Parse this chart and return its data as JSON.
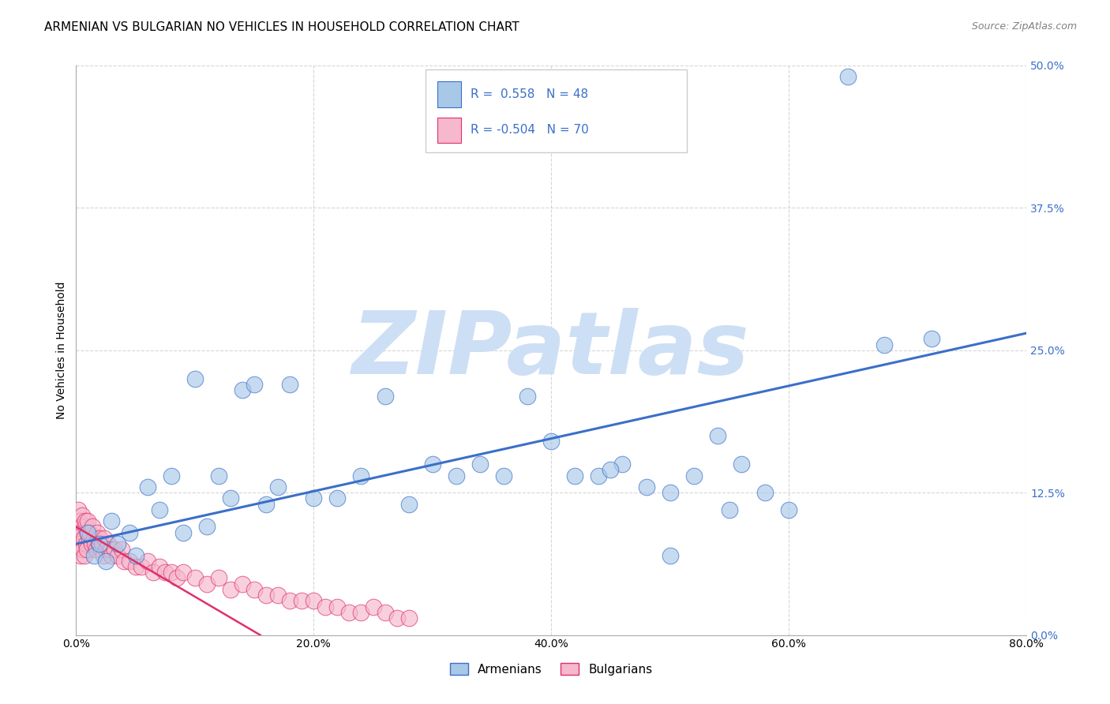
{
  "title": "ARMENIAN VS BULGARIAN NO VEHICLES IN HOUSEHOLD CORRELATION CHART",
  "source": "Source: ZipAtlas.com",
  "ylabel": "No Vehicles in Household",
  "x_tick_values": [
    0.0,
    20.0,
    40.0,
    60.0,
    80.0
  ],
  "y_tick_values": [
    0.0,
    12.5,
    25.0,
    37.5,
    50.0
  ],
  "xlim": [
    0.0,
    80.0
  ],
  "ylim": [
    0.0,
    50.0
  ],
  "legend_armenians_label": "Armenians",
  "legend_bulgarians_label": "Bulgarians",
  "armenian_R": 0.558,
  "armenian_N": 48,
  "bulgarian_R": -0.504,
  "bulgarian_N": 70,
  "armenian_color": "#a8c8e8",
  "bulgarian_color": "#f5b8cc",
  "armenian_line_color": "#3B6FC9",
  "bulgarian_line_color": "#E0306A",
  "background_color": "#ffffff",
  "watermark": "ZIPatlas",
  "watermark_color": "#cddff5",
  "grid_color": "#cccccc",
  "title_fontsize": 11,
  "axis_label_fontsize": 10,
  "tick_fontsize": 10,
  "arm_x": [
    1.0,
    1.5,
    2.0,
    2.5,
    3.0,
    3.5,
    4.5,
    5.0,
    6.0,
    7.0,
    8.0,
    9.0,
    10.0,
    11.0,
    12.0,
    13.0,
    14.0,
    15.0,
    16.0,
    17.0,
    18.0,
    20.0,
    22.0,
    24.0,
    26.0,
    28.0,
    30.0,
    32.0,
    34.0,
    36.0,
    38.0,
    40.0,
    42.0,
    44.0,
    46.0,
    48.0,
    50.0,
    52.0,
    54.0,
    56.0,
    58.0,
    60.0,
    45.0,
    50.0,
    55.0,
    65.0,
    68.0,
    72.0
  ],
  "arm_y": [
    9.0,
    7.0,
    8.0,
    6.5,
    10.0,
    8.0,
    9.0,
    7.0,
    13.0,
    11.0,
    14.0,
    9.0,
    22.5,
    9.5,
    14.0,
    12.0,
    21.5,
    22.0,
    11.5,
    13.0,
    22.0,
    12.0,
    12.0,
    14.0,
    21.0,
    11.5,
    15.0,
    14.0,
    15.0,
    14.0,
    21.0,
    17.0,
    14.0,
    14.0,
    15.0,
    13.0,
    7.0,
    14.0,
    17.5,
    15.0,
    12.5,
    11.0,
    14.5,
    12.5,
    11.0,
    49.0,
    25.5,
    26.0
  ],
  "bul_x": [
    0.1,
    0.15,
    0.2,
    0.25,
    0.3,
    0.35,
    0.4,
    0.45,
    0.5,
    0.55,
    0.6,
    0.65,
    0.7,
    0.75,
    0.8,
    0.85,
    0.9,
    0.95,
    1.0,
    1.1,
    1.2,
    1.3,
    1.4,
    1.5,
    1.6,
    1.7,
    1.8,
    1.9,
    2.0,
    2.1,
    2.2,
    2.3,
    2.4,
    2.5,
    2.7,
    2.9,
    3.0,
    3.2,
    3.5,
    3.8,
    4.0,
    4.5,
    5.0,
    5.5,
    6.0,
    6.5,
    7.0,
    7.5,
    8.0,
    8.5,
    9.0,
    10.0,
    11.0,
    12.0,
    13.0,
    14.0,
    15.0,
    16.0,
    17.0,
    18.0,
    19.0,
    20.0,
    21.0,
    22.0,
    23.0,
    24.0,
    25.0,
    26.0,
    27.0,
    28.0
  ],
  "bul_y": [
    9.0,
    8.5,
    11.0,
    8.0,
    10.0,
    7.0,
    9.5,
    8.0,
    10.5,
    7.5,
    9.0,
    8.5,
    7.0,
    9.5,
    10.0,
    8.0,
    7.5,
    9.0,
    10.0,
    8.5,
    9.0,
    8.0,
    9.5,
    8.5,
    8.0,
    7.5,
    9.0,
    8.0,
    8.5,
    7.5,
    8.0,
    7.0,
    8.5,
    7.5,
    8.0,
    7.5,
    7.0,
    7.5,
    7.0,
    7.5,
    6.5,
    6.5,
    6.0,
    6.0,
    6.5,
    5.5,
    6.0,
    5.5,
    5.5,
    5.0,
    5.5,
    5.0,
    4.5,
    5.0,
    4.0,
    4.5,
    4.0,
    3.5,
    3.5,
    3.0,
    3.0,
    3.0,
    2.5,
    2.5,
    2.0,
    2.0,
    2.5,
    2.0,
    1.5,
    1.5
  ],
  "arm_line_x0": 0.0,
  "arm_line_y0": 8.0,
  "arm_line_x1": 80.0,
  "arm_line_y1": 26.5,
  "bul_line_x0": 0.0,
  "bul_line_y0": 9.5,
  "bul_line_x1": 15.5,
  "bul_line_y1": 0.0
}
